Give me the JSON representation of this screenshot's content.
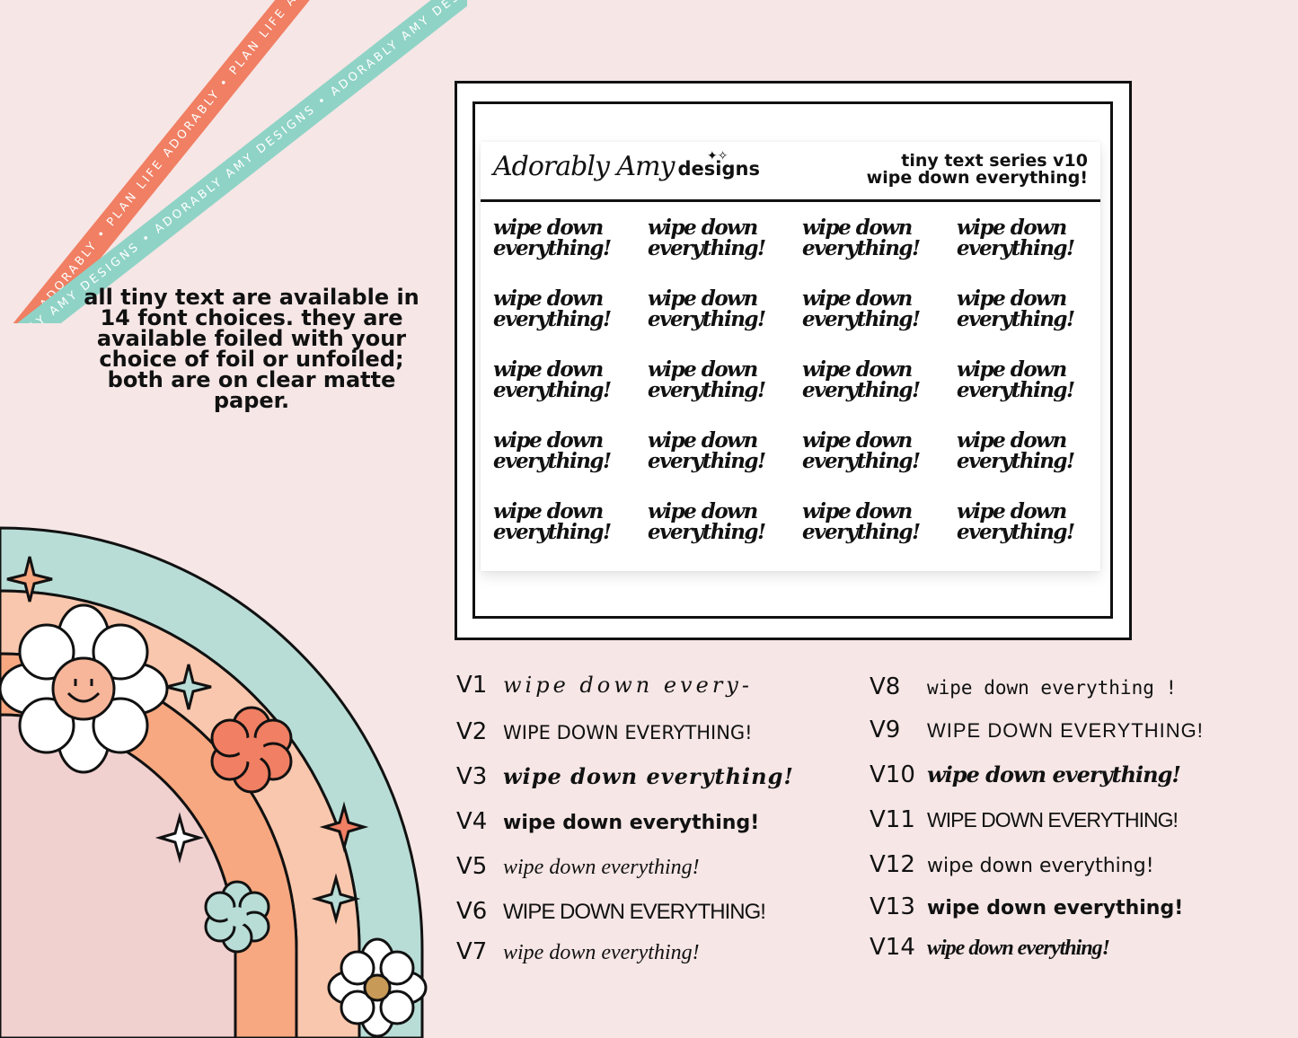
{
  "ribbons": {
    "coral": "PLAN LIFE ADORABLY • PLAN LIFE ADORABLY • PLAN LIFE ADORABLY •",
    "mint": "ADORABLY AMY DESIGNS • ADORABLY AMY DESIGNS • ADORABLY AMY DESIGNS •"
  },
  "intro": "all tiny text are available in 14 font choices. they are available foiled with your choice of foil or unfoiled; both are on clear matte paper.",
  "sheet": {
    "brand": "Adorably Amy",
    "brand_suffix": "designs",
    "series_line1": "tiny text series v10",
    "series_line2": "wipe down everything!",
    "sticker_line1": "wipe down",
    "sticker_line2": "everything!"
  },
  "font_options": [
    {
      "v": "V1",
      "text": "wipe down every-"
    },
    {
      "v": "V2",
      "text": "WIPE DOWN EVERYTHING!"
    },
    {
      "v": "V3",
      "text": "wipe down everything!"
    },
    {
      "v": "V4",
      "text": "wipe down everything!"
    },
    {
      "v": "V5",
      "text": "wipe down everything!"
    },
    {
      "v": "V6",
      "text": "WIPE DOWN EVERYTHING!"
    },
    {
      "v": "V7",
      "text": "wipe down everything!"
    },
    {
      "v": "V8",
      "text": "wipe down everything !"
    },
    {
      "v": "V9",
      "text": "WIPE DOWN EVERYTHING!"
    },
    {
      "v": "V10",
      "text": "wipe down everything!"
    },
    {
      "v": "V11",
      "text": "WIPE DOWN EVERYTHING!"
    },
    {
      "v": "V12",
      "text": "wipe down everything!"
    },
    {
      "v": "V13",
      "text": "wipe down everything!"
    },
    {
      "v": "V14",
      "text": "wipe down everything!"
    }
  ],
  "colors": {
    "background": "#f6e6e6",
    "coral": "#f07f63",
    "mint": "#8fd3c6",
    "peach": "#f7a880",
    "light_peach": "#f9c7ad",
    "pink": "#f1d0d0"
  }
}
